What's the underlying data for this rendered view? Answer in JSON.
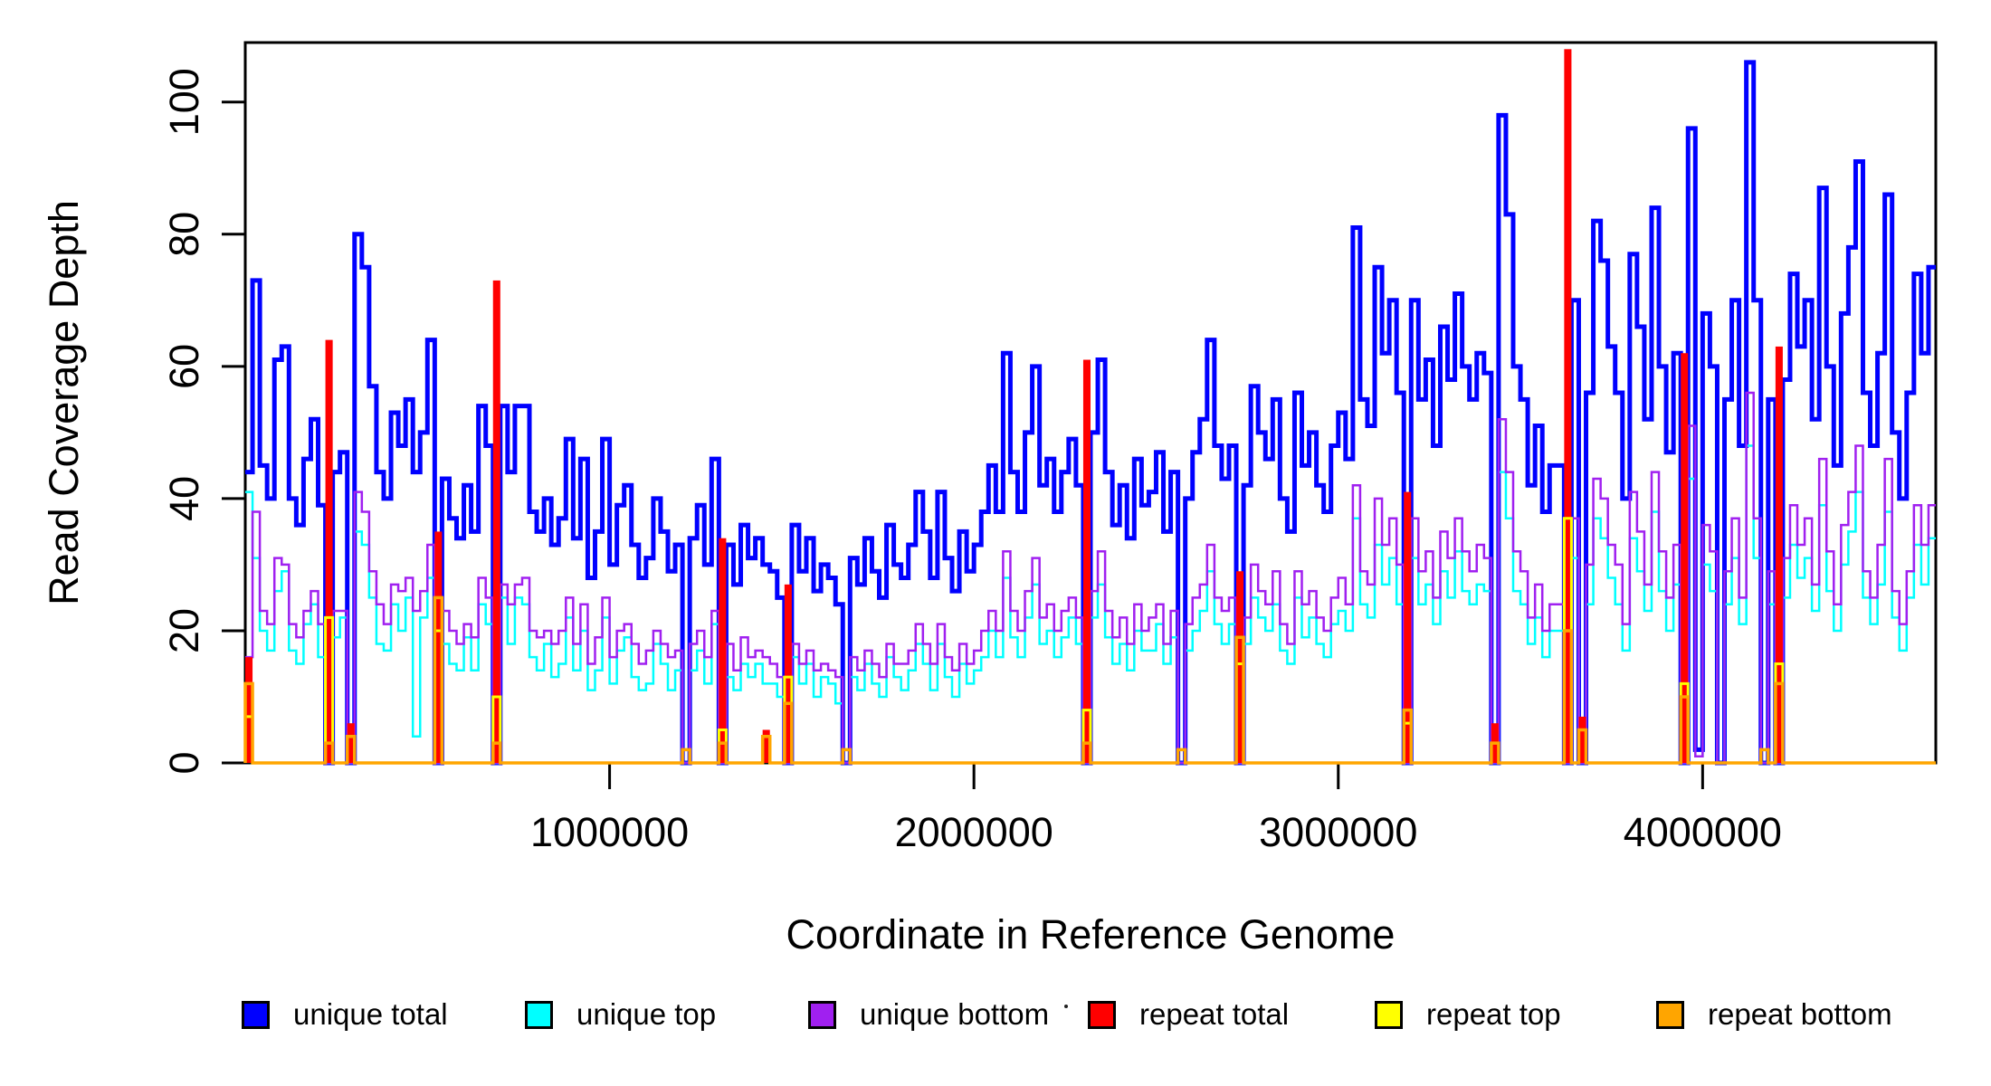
{
  "figure": {
    "background": "#FFFFFF"
  },
  "chart_data": {
    "type": "line",
    "subtype": "step-coverage",
    "title": "",
    "xlabel": "Coordinate in Reference Genome",
    "ylabel": "Read Coverage Depth",
    "xlim": [
      0,
      4640000
    ],
    "ylim": [
      0,
      109
    ],
    "x_start": 0,
    "bin_size": 20000,
    "n_bins": 232,
    "grid": false,
    "box": true,
    "x_ticks": [
      1000000,
      2000000,
      3000000,
      4000000
    ],
    "x_tick_labels": [
      "1000000",
      "2000000",
      "3000000",
      "4000000"
    ],
    "y_ticks": [
      0,
      20,
      40,
      60,
      80,
      100
    ],
    "y_tick_labels": [
      "0",
      "20",
      "40",
      "60",
      "80",
      "100"
    ],
    "legend": {
      "position": "bottom"
    },
    "series": [
      {
        "name": "unique total",
        "key": "unique-total",
        "color": "#0000FF",
        "line_width": 5,
        "style": "step",
        "values": [
          44,
          73,
          45,
          40,
          61,
          63,
          40,
          36,
          46,
          52,
          39,
          0,
          44,
          47,
          0,
          80,
          75,
          57,
          44,
          40,
          53,
          48,
          55,
          44,
          50,
          64,
          0,
          43,
          37,
          34,
          42,
          35,
          54,
          48,
          0,
          54,
          44,
          54,
          54,
          38,
          35,
          40,
          33,
          37,
          49,
          34,
          46,
          28,
          35,
          49,
          30,
          39,
          42,
          33,
          28,
          31,
          40,
          35,
          29,
          33,
          0,
          34,
          39,
          30,
          46,
          0,
          33,
          27,
          36,
          31,
          34,
          30,
          29,
          25,
          0,
          36,
          29,
          34,
          26,
          30,
          28,
          24,
          0,
          31,
          27,
          34,
          29,
          25,
          36,
          30,
          28,
          33,
          41,
          35,
          28,
          41,
          31,
          26,
          35,
          29,
          33,
          38,
          45,
          38,
          62,
          44,
          38,
          50,
          60,
          42,
          46,
          38,
          44,
          49,
          42,
          0,
          50,
          61,
          44,
          36,
          42,
          34,
          46,
          39,
          41,
          47,
          35,
          44,
          0,
          40,
          47,
          52,
          64,
          48,
          43,
          48,
          0,
          42,
          57,
          50,
          46,
          55,
          40,
          35,
          56,
          45,
          50,
          42,
          38,
          48,
          53,
          46,
          81,
          55,
          51,
          75,
          62,
          70,
          56,
          0,
          70,
          55,
          61,
          48,
          66,
          58,
          71,
          60,
          55,
          62,
          59,
          0,
          98,
          83,
          60,
          55,
          42,
          51,
          38,
          45,
          45,
          0,
          70,
          0,
          56,
          82,
          76,
          63,
          56,
          40,
          77,
          66,
          52,
          84,
          60,
          47,
          62,
          0,
          96,
          2,
          68,
          60,
          0,
          55,
          70,
          48,
          106,
          70,
          0,
          55,
          0,
          58,
          74,
          63,
          70,
          52,
          87,
          60,
          45,
          68,
          78,
          91,
          56,
          48,
          62,
          86,
          50,
          40,
          56,
          74,
          62,
          75
        ]
      },
      {
        "name": "unique top",
        "key": "unique-top",
        "color": "#00FFFF",
        "line_width": 2.5,
        "style": "step",
        "values": [
          41,
          31,
          20,
          17,
          26,
          29,
          17,
          15,
          21,
          24,
          16,
          0,
          19,
          22,
          0,
          35,
          33,
          25,
          18,
          17,
          24,
          20,
          25,
          4,
          22,
          28,
          0,
          18,
          15,
          14,
          19,
          14,
          24,
          21,
          0,
          25,
          18,
          25,
          24,
          16,
          14,
          18,
          13,
          15,
          22,
          14,
          20,
          11,
          14,
          22,
          12,
          17,
          19,
          13,
          11,
          12,
          18,
          15,
          11,
          14,
          0,
          14,
          17,
          12,
          21,
          0,
          13,
          11,
          15,
          13,
          15,
          12,
          12,
          10,
          0,
          16,
          12,
          15,
          10,
          13,
          12,
          9,
          0,
          13,
          11,
          15,
          12,
          10,
          16,
          13,
          11,
          14,
          18,
          15,
          11,
          18,
          13,
          10,
          15,
          12,
          14,
          16,
          20,
          16,
          28,
          19,
          16,
          22,
          27,
          18,
          20,
          16,
          19,
          22,
          18,
          0,
          22,
          27,
          19,
          15,
          18,
          14,
          20,
          17,
          17,
          21,
          15,
          19,
          0,
          17,
          20,
          23,
          29,
          21,
          18,
          21,
          0,
          18,
          25,
          22,
          20,
          24,
          17,
          15,
          25,
          19,
          22,
          18,
          16,
          21,
          23,
          20,
          37,
          24,
          22,
          33,
          27,
          31,
          24,
          0,
          31,
          24,
          27,
          21,
          29,
          25,
          32,
          26,
          24,
          27,
          26,
          0,
          44,
          37,
          26,
          24,
          18,
          22,
          16,
          20,
          20,
          0,
          31,
          0,
          24,
          37,
          34,
          28,
          24,
          17,
          34,
          29,
          23,
          38,
          26,
          20,
          27,
          0,
          43,
          1,
          30,
          26,
          0,
          24,
          31,
          21,
          48,
          31,
          0,
          24,
          0,
          25,
          33,
          28,
          31,
          23,
          39,
          26,
          20,
          30,
          35,
          41,
          25,
          21,
          27,
          38,
          22,
          17,
          25,
          33,
          27,
          34
        ]
      },
      {
        "name": "unique bottom",
        "key": "unique-bottom",
        "color": "#A020F0",
        "line_width": 2.5,
        "style": "step",
        "values": [
          16,
          38,
          23,
          21,
          31,
          30,
          21,
          19,
          23,
          26,
          21,
          0,
          23,
          23,
          0,
          41,
          38,
          29,
          24,
          21,
          27,
          26,
          28,
          23,
          26,
          33,
          0,
          23,
          20,
          18,
          21,
          19,
          28,
          25,
          0,
          27,
          24,
          27,
          28,
          20,
          19,
          20,
          18,
          20,
          25,
          18,
          24,
          15,
          19,
          25,
          16,
          20,
          21,
          18,
          15,
          17,
          20,
          18,
          16,
          17,
          0,
          18,
          20,
          16,
          23,
          0,
          18,
          14,
          19,
          16,
          17,
          16,
          15,
          13,
          0,
          18,
          15,
          17,
          14,
          15,
          14,
          13,
          0,
          16,
          14,
          17,
          15,
          13,
          18,
          15,
          15,
          17,
          21,
          18,
          15,
          21,
          16,
          14,
          18,
          15,
          17,
          20,
          23,
          20,
          32,
          23,
          20,
          26,
          31,
          22,
          24,
          20,
          23,
          25,
          22,
          0,
          26,
          32,
          23,
          19,
          22,
          18,
          24,
          20,
          22,
          24,
          18,
          23,
          0,
          21,
          25,
          27,
          33,
          25,
          23,
          25,
          0,
          22,
          30,
          26,
          24,
          29,
          21,
          18,
          29,
          24,
          26,
          22,
          20,
          25,
          28,
          24,
          42,
          29,
          27,
          40,
          33,
          37,
          30,
          0,
          37,
          29,
          32,
          25,
          35,
          31,
          37,
          32,
          29,
          33,
          31,
          0,
          52,
          44,
          32,
          29,
          22,
          27,
          20,
          24,
          24,
          0,
          37,
          0,
          30,
          43,
          40,
          33,
          30,
          21,
          41,
          35,
          27,
          44,
          32,
          25,
          33,
          0,
          51,
          1,
          36,
          32,
          0,
          29,
          37,
          25,
          56,
          37,
          0,
          29,
          0,
          31,
          39,
          33,
          37,
          27,
          46,
          32,
          24,
          36,
          41,
          48,
          29,
          25,
          33,
          46,
          26,
          21,
          29,
          39,
          33,
          39
        ]
      },
      {
        "name": "repeat total",
        "key": "repeat-total",
        "color": "#FF0000",
        "line_width": 5,
        "style": "spike-solid",
        "baseline": 0,
        "spikes": [
          {
            "x": 0,
            "value": 16
          },
          {
            "x": 220000,
            "value": 64
          },
          {
            "x": 280000,
            "value": 6
          },
          {
            "x": 520000,
            "value": 35
          },
          {
            "x": 680000,
            "value": 73
          },
          {
            "x": 1300000,
            "value": 34
          },
          {
            "x": 1420000,
            "value": 5
          },
          {
            "x": 1480000,
            "value": 27
          },
          {
            "x": 2300000,
            "value": 61
          },
          {
            "x": 2720000,
            "value": 29
          },
          {
            "x": 3180000,
            "value": 41
          },
          {
            "x": 3420000,
            "value": 6
          },
          {
            "x": 3620000,
            "value": 108
          },
          {
            "x": 3660000,
            "value": 7
          },
          {
            "x": 3940000,
            "value": 62
          },
          {
            "x": 4200000,
            "value": 63
          }
        ]
      },
      {
        "name": "repeat top",
        "key": "repeat-top",
        "color": "#FFFF00",
        "line_width": 3,
        "style": "spike-outline",
        "baseline": 0,
        "spikes": [
          {
            "x": 0,
            "value": 7
          },
          {
            "x": 220000,
            "value": 22
          },
          {
            "x": 520000,
            "value": 20
          },
          {
            "x": 680000,
            "value": 10
          },
          {
            "x": 1300000,
            "value": 5
          },
          {
            "x": 1480000,
            "value": 13
          },
          {
            "x": 2300000,
            "value": 8
          },
          {
            "x": 2720000,
            "value": 15
          },
          {
            "x": 3180000,
            "value": 6
          },
          {
            "x": 3620000,
            "value": 37
          },
          {
            "x": 3940000,
            "value": 12
          },
          {
            "x": 4200000,
            "value": 15
          }
        ]
      },
      {
        "name": "repeat bottom",
        "key": "repeat-bottom",
        "color": "#FFA500",
        "line_width": 3.5,
        "style": "spike-baseline",
        "baseline": 0,
        "spikes": [
          {
            "x": 0,
            "value": 12
          },
          {
            "x": 220000,
            "value": 3
          },
          {
            "x": 280000,
            "value": 4
          },
          {
            "x": 520000,
            "value": 25
          },
          {
            "x": 680000,
            "value": 3
          },
          {
            "x": 1200000,
            "value": 2
          },
          {
            "x": 1300000,
            "value": 3
          },
          {
            "x": 1420000,
            "value": 4
          },
          {
            "x": 1480000,
            "value": 9
          },
          {
            "x": 1640000,
            "value": 2
          },
          {
            "x": 2300000,
            "value": 3
          },
          {
            "x": 2560000,
            "value": 2
          },
          {
            "x": 2720000,
            "value": 19
          },
          {
            "x": 3180000,
            "value": 8
          },
          {
            "x": 3420000,
            "value": 3
          },
          {
            "x": 3620000,
            "value": 20
          },
          {
            "x": 3660000,
            "value": 5
          },
          {
            "x": 3940000,
            "value": 10
          },
          {
            "x": 4160000,
            "value": 2
          },
          {
            "x": 4200000,
            "value": 12
          }
        ]
      }
    ]
  }
}
